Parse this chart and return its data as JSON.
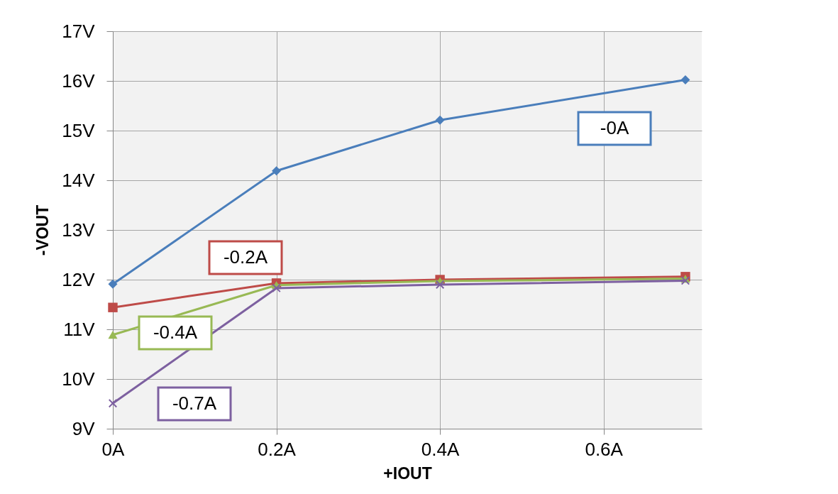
{
  "chart_data": {
    "type": "line",
    "xlabel": "+IOUT",
    "ylabel": "-VOUT",
    "x": [
      0,
      0.2,
      0.4,
      0.7
    ],
    "series": [
      {
        "name": "-0A",
        "color": "#4a7ebb",
        "marker": "diamond",
        "values": [
          11.91,
          14.19,
          15.21,
          16.02
        ]
      },
      {
        "name": "-0.2A",
        "color": "#be4b48",
        "marker": "square",
        "values": [
          11.44,
          11.93,
          12.0,
          12.06
        ]
      },
      {
        "name": "-0.4A",
        "color": "#98b954",
        "marker": "triangle",
        "values": [
          10.89,
          11.89,
          11.97,
          12.02
        ]
      },
      {
        "name": "-0.7A",
        "color": "#7d60a0",
        "marker": "cross",
        "values": [
          9.51,
          11.83,
          11.9,
          11.98
        ]
      }
    ],
    "xlim": [
      0,
      0.72
    ],
    "xticks": [
      {
        "value": 0,
        "label": "0A"
      },
      {
        "value": 0.2,
        "label": "0.2A"
      },
      {
        "value": 0.4,
        "label": "0.4A"
      },
      {
        "value": 0.6,
        "label": "0.6A"
      }
    ],
    "ylim": [
      9,
      17
    ],
    "yticks": [
      {
        "value": 9,
        "label": "9V"
      },
      {
        "value": 10,
        "label": "10V"
      },
      {
        "value": 11,
        "label": "11V"
      },
      {
        "value": 12,
        "label": "12V"
      },
      {
        "value": 13,
        "label": "13V"
      },
      {
        "value": 14,
        "label": "14V"
      },
      {
        "value": 15,
        "label": "15V"
      },
      {
        "value": 16,
        "label": "16V"
      },
      {
        "value": 17,
        "label": "17V"
      }
    ],
    "grid": true
  }
}
